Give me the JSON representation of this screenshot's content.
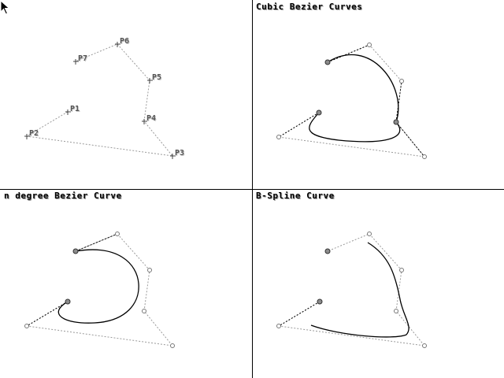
{
  "panels": {
    "points": {
      "title": ""
    },
    "cubic": {
      "title": "Cubic Bezier Curves"
    },
    "ndegree": {
      "title": "n degree Bezier Curve"
    },
    "bspline": {
      "title": "B-Spline Curve"
    }
  },
  "control_points": [
    {
      "label": "P1"
    },
    {
      "label": "P2"
    },
    {
      "label": "P3"
    },
    {
      "label": "P4"
    },
    {
      "label": "P5"
    },
    {
      "label": "P6"
    },
    {
      "label": "P7"
    }
  ],
  "colors": {
    "background": "#ffffff",
    "divider": "#000000",
    "polygon": "#9a9a9a",
    "tangent": "#000000",
    "curve": "#000000",
    "point_fill": "#8c8c8c",
    "label": "#555555"
  },
  "cursor_icon": "arrow-pointer-icon"
}
